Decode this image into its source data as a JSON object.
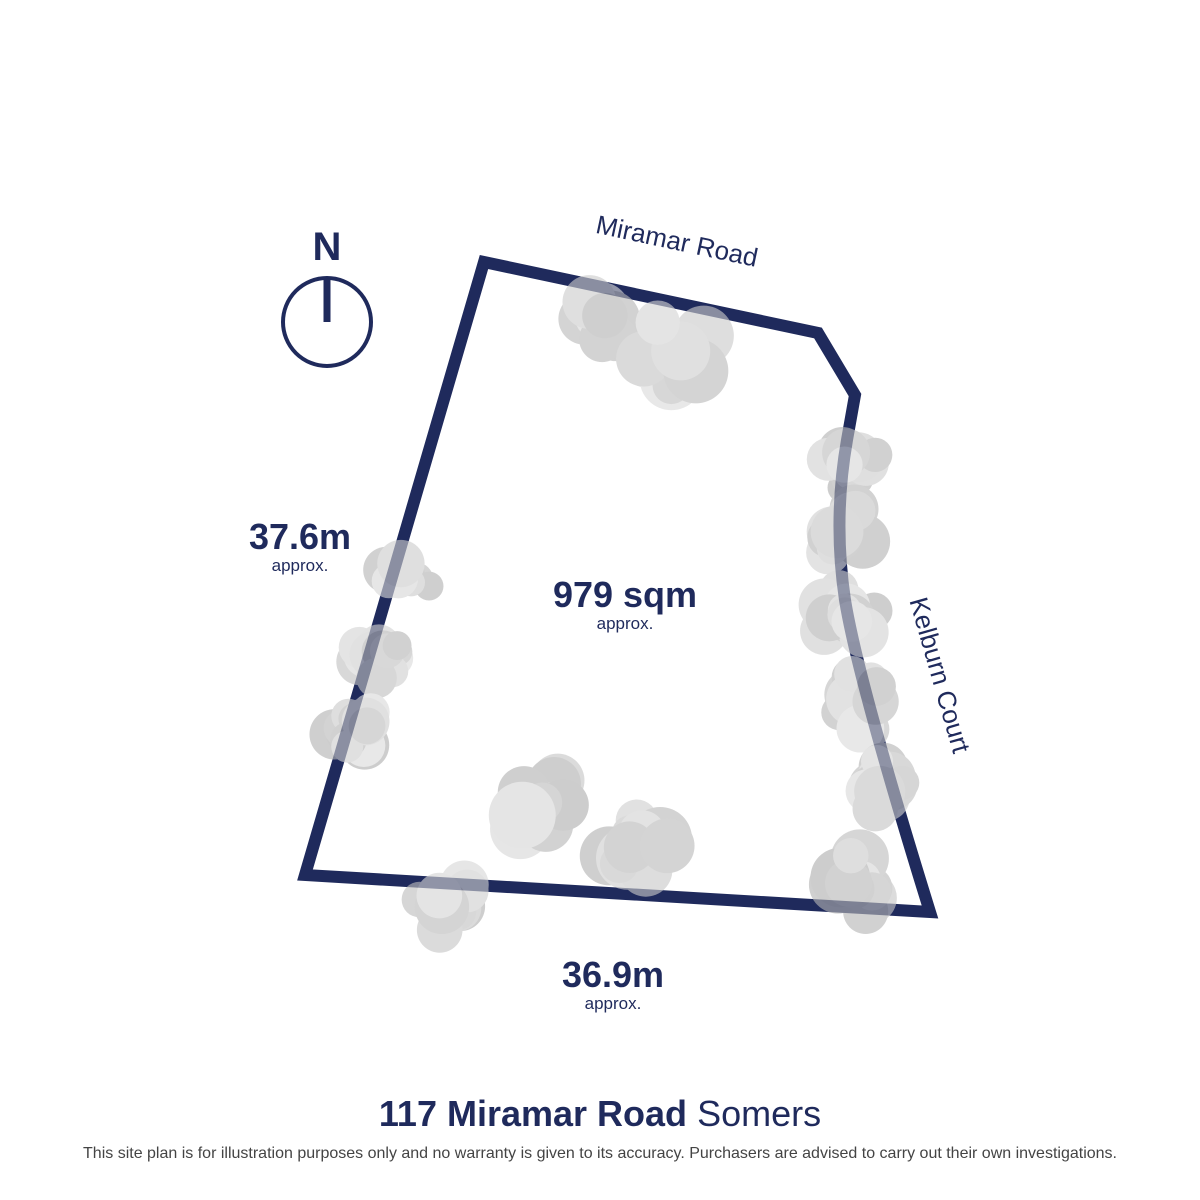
{
  "compass": {
    "letter": "N"
  },
  "streets": {
    "north": "Miramar Road",
    "east": "Kelburn Court"
  },
  "dimensions": {
    "west": {
      "value": "37.6m",
      "note": "approx."
    },
    "south": {
      "value": "36.9m",
      "note": "approx."
    },
    "area": {
      "value": "979 sqm",
      "note": "approx."
    }
  },
  "footer": {
    "address": "117 Miramar Road",
    "suburb": "Somers",
    "disclaimer": "This site plan is for illustration purposes only and no warranty is given to its accuracy. Purchasers are advised to carry out their own investigations."
  },
  "colors": {
    "boundary": "#1f2a5c",
    "trees": "#b8b8b8"
  }
}
